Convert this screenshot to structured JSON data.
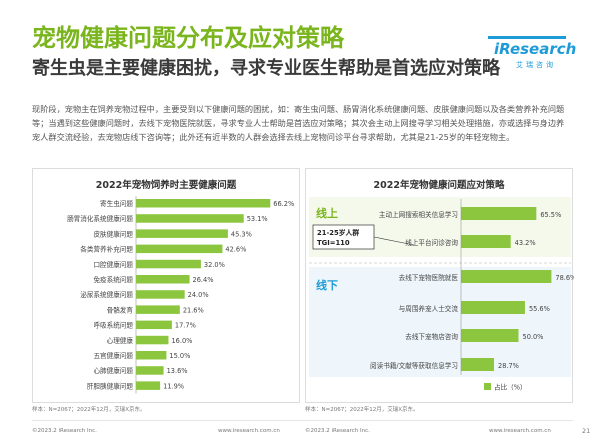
{
  "title": "宠物健康问题分布及应对策略",
  "subtitle": "寄生虫是主要健康困扰，寻求专业医生帮助是首选应对策略",
  "logo": {
    "name": "iResearch",
    "sub": "艾瑞咨询"
  },
  "description": "现阶段，宠物主在饲养宠物过程中，主要受到以下健康问题的困扰，如：寄生虫问题、肠胃消化系统健康问题、皮肤健康问题以及各类营养补充问题等；当遇到这些健康问题时，去线下宠物医院就医，寻求专业人士帮助是首选应对策略；其次会主动上网搜寻学习相关处理措施，亦或选择与身边养宠人群交流经验，去宠物店线下咨询等；此外还有近半数的人群会选择去线上宠物问诊平台寻求帮助，尤其是21-25岁的年轻宠物主。",
  "colors": {
    "bar": "#8cc63f",
    "accent": "#7ab51d",
    "online_label": "#7ab51d",
    "offline_label": "#1e9bd7",
    "divider": "#cccccc"
  },
  "chart_data": [
    {
      "type": "bar",
      "orientation": "horizontal",
      "title": "2022年宠物饲养时主要健康问题",
      "categories": [
        "寄生虫问题",
        "肠胃消化系统健康问题",
        "皮肤健康问题",
        "各类营养补充问题",
        "口腔健康问题",
        "免疫系统问题",
        "泌尿系统健康问题",
        "骨骼发育",
        "呼吸系统问题",
        "心理健康",
        "五官健康问题",
        "心肺健康问题",
        "肝胆胰健康问题"
      ],
      "values": [
        66.2,
        53.1,
        45.3,
        42.6,
        32.0,
        26.4,
        24.0,
        21.6,
        17.7,
        16.0,
        15.0,
        13.6,
        11.9
      ],
      "value_labels": [
        "66.2%",
        "53.1%",
        "45.3%",
        "42.6%",
        "32.0%",
        "26.4%",
        "24.0%",
        "21.6%",
        "17.7%",
        "16.0%",
        "15.0%",
        "13.6%",
        "11.9%"
      ],
      "xlim": [
        0,
        70
      ]
    },
    {
      "type": "bar",
      "orientation": "horizontal",
      "title": "2022年宠物健康问题应对策略",
      "groups": [
        {
          "name": "线上",
          "categories": [
            "主动上网搜索相关信息学习",
            "线上平台问诊咨询"
          ],
          "values": [
            65.5,
            43.2
          ],
          "value_labels": [
            "65.5%",
            "43.2%"
          ]
        },
        {
          "name": "线下",
          "categories": [
            "去线下宠物医院就医",
            "与周围养宠人士交流",
            "去线下宠物店咨询",
            "阅读书籍/文献等获取信息学习"
          ],
          "values": [
            78.6,
            55.6,
            50.0,
            28.7
          ],
          "value_labels": [
            "78.6%",
            "55.6%",
            "50.0%",
            "28.7%"
          ]
        }
      ],
      "callout": {
        "line1": "21-25岁人群",
        "line2": "TGI=110"
      },
      "legend": "占比（%）",
      "xlim": [
        0,
        80
      ]
    }
  ],
  "notes": {
    "left": "样本：N=2067；2022年12月，艾瑞X京东。",
    "right": "样本：N=2067；2022年12月，艾瑞X京东。"
  },
  "footer": {
    "copyright": "©2023.2 iResearch Inc.",
    "website": "www.iresearch.com.cn",
    "page": "21"
  }
}
